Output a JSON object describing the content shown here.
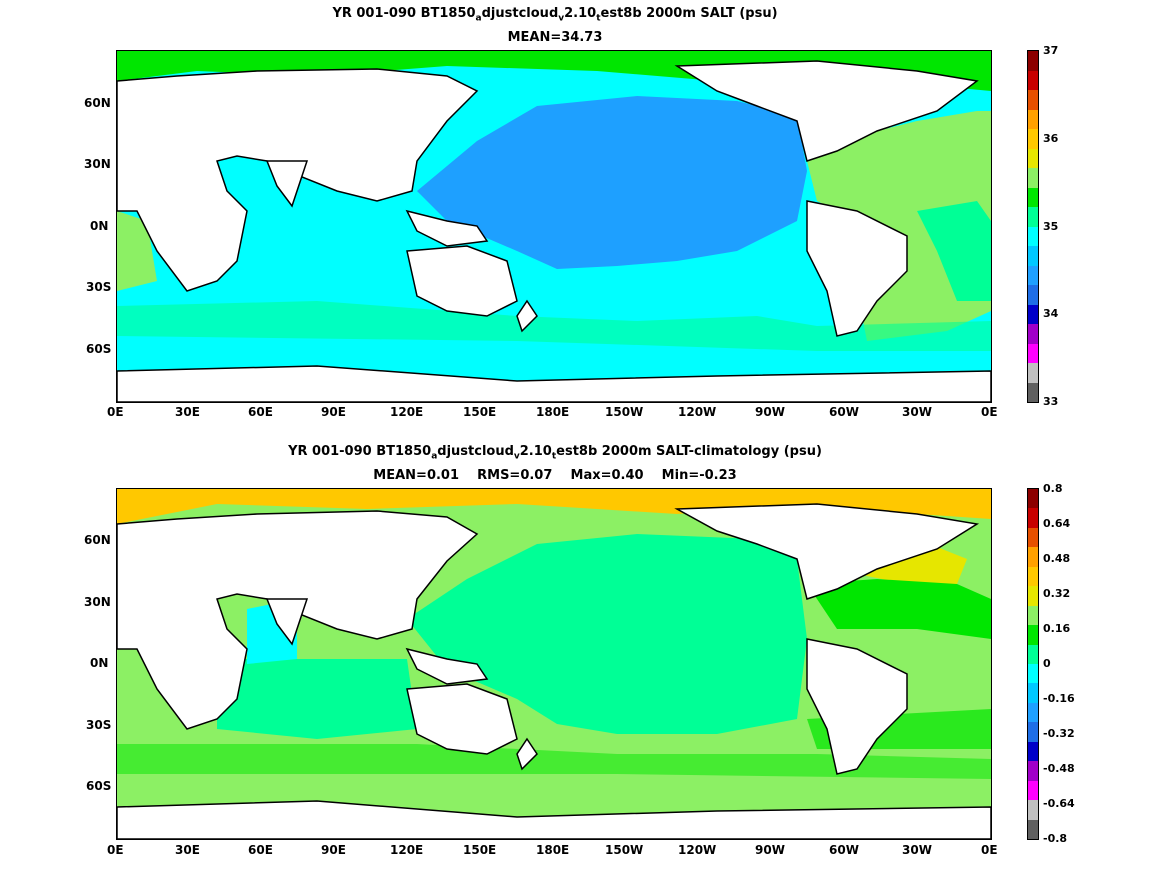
{
  "panel_top": {
    "title_line1_pre": "YR 001-090 BT1850",
    "title_sub_a": "a",
    "title_mid1": "djustcloud",
    "title_sub_v": "v",
    "title_mid2": "2.10",
    "title_sub_t": "t",
    "title_post": "est8b 2000m SALT (psu)",
    "stats": "MEAN=34.73",
    "colorbar_labels": [
      "37",
      "36",
      "35",
      "34",
      "33"
    ]
  },
  "panel_bottom": {
    "title_line1_pre": "YR 001-090 BT1850",
    "title_sub_a": "a",
    "title_mid1": "djustcloud",
    "title_sub_v": "v",
    "title_mid2": "2.10",
    "title_sub_t": "t",
    "title_post": "est8b 2000m SALT-climatology (psu)",
    "stats": "MEAN=0.01    RMS=0.07    Max=0.40    Min=-0.23",
    "colorbar_labels": [
      "0.8",
      "0.64",
      "0.48",
      "0.32",
      "0.16",
      "0",
      "-0.16",
      "-0.32",
      "-0.48",
      "-0.64",
      "-0.8"
    ]
  },
  "axes": {
    "x_ticks": [
      "0E",
      "30E",
      "60E",
      "90E",
      "120E",
      "150E",
      "180E",
      "150W",
      "120W",
      "90W",
      "60W",
      "30W",
      "0E"
    ],
    "y_ticks": [
      "60N",
      "30N",
      "0N",
      "30S",
      "60S"
    ]
  },
  "colors": {
    "top_colorbar": [
      "#606060",
      "#c0c0c0",
      "#ff00ff",
      "#a000c8",
      "#0000c8",
      "#1e6ee6",
      "#1ea0ff",
      "#00c8ff",
      "#00ffff",
      "#00ff96",
      "#00e600",
      "#8cf064",
      "#e6e600",
      "#ffc800",
      "#ffa000",
      "#e65000",
      "#c80000",
      "#8c0000"
    ],
    "bottom_colorbar": [
      "#606060",
      "#c0c0c0",
      "#ff00ff",
      "#a000c8",
      "#0000c8",
      "#1e6ee6",
      "#1ea0ff",
      "#00c8ff",
      "#00ffff",
      "#00ff96",
      "#00e600",
      "#8cf064",
      "#e6e600",
      "#ffc800",
      "#ffa000",
      "#e65000",
      "#c80000",
      "#8c0000"
    ],
    "land": "#ffffff",
    "coast": "#000000"
  }
}
